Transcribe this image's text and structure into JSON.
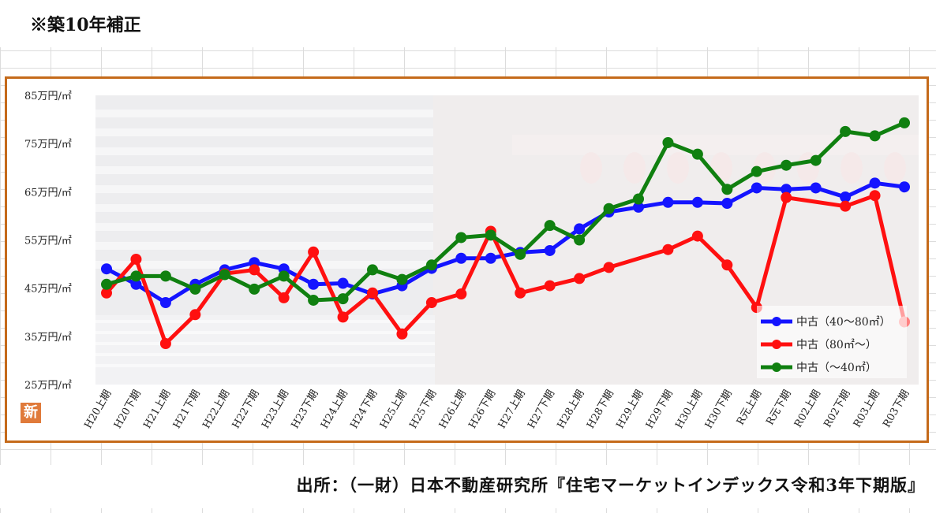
{
  "header": {
    "note": "※築10年補正"
  },
  "footer": {
    "source": "出所：（一財）日本不動産研究所『住宅マーケットインデックス令和3年下期版』"
  },
  "badge": {
    "text": "新"
  },
  "chart_data": {
    "type": "line",
    "y_unit_suffix": "万円/㎡",
    "ylim": [
      25,
      85
    ],
    "yticks": [
      85,
      75,
      65,
      55,
      45,
      35,
      25
    ],
    "categories": [
      "H20上期",
      "H20下期",
      "H21上期",
      "H21下期",
      "H22上期",
      "H22下期",
      "H23上期",
      "H23下期",
      "H24上期",
      "H24下期",
      "H25上期",
      "H25下期",
      "H26上期",
      "H26下期",
      "H27上期",
      "H27下期",
      "H28上期",
      "H28下期",
      "H29上期",
      "H29下期",
      "H30上期",
      "H30下期",
      "R元上期",
      "R元下期",
      "R02上期",
      "R02下期",
      "R03上期",
      "R03下期"
    ],
    "series": [
      {
        "name": "中古（40～80㎡）",
        "color": "#1414ff",
        "values": [
          49.0,
          45.8,
          42.0,
          45.8,
          48.8,
          50.3,
          49.0,
          45.8,
          46.0,
          43.8,
          45.5,
          49.1,
          51.2,
          51.2,
          52.4,
          52.8,
          57.3,
          60.8,
          61.8,
          62.8,
          62.8,
          62.6,
          65.8,
          65.5,
          65.8,
          63.9,
          66.8,
          66.0
        ]
      },
      {
        "name": "中古（80㎡～）",
        "color": "#ff1010",
        "values": [
          44.0,
          51.0,
          33.5,
          39.5,
          48.0,
          48.8,
          43.0,
          52.5,
          39.0,
          44.0,
          35.5,
          42.0,
          43.8,
          56.8,
          44.0,
          45.5,
          47.0,
          49.3,
          null,
          53.0,
          55.8,
          49.8,
          41.0,
          63.8,
          null,
          62.0,
          64.2,
          38.0
        ]
      },
      {
        "name": "中古（～40㎡）",
        "color": "#108010",
        "values": [
          45.8,
          47.5,
          47.5,
          44.8,
          47.8,
          44.8,
          47.5,
          42.5,
          42.8,
          48.8,
          46.8,
          49.8,
          55.5,
          56.0,
          52.0,
          58.0,
          55.0,
          61.5,
          63.5,
          75.2,
          72.8,
          65.5,
          69.2,
          70.5,
          71.5,
          77.5,
          76.6,
          79.3
        ]
      }
    ],
    "legend_position": "bottom-right"
  }
}
